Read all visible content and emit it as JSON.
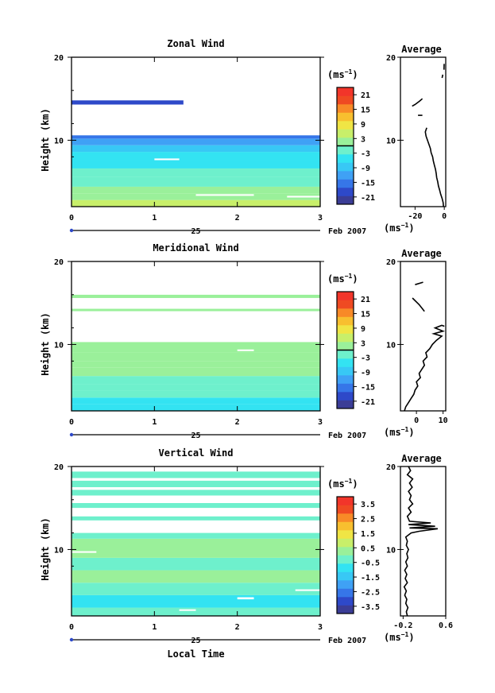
{
  "colors": {
    "scale": [
      "#3b3d96",
      "#2e49c9",
      "#3676e8",
      "#3fa1f5",
      "#38c8f5",
      "#33e3f2",
      "#6ef0cc",
      "#9af09a",
      "#c8ef6a",
      "#f0e545",
      "#f8bf2f",
      "#f88a27",
      "#ef4a22",
      "#f2352a"
    ],
    "line": "#000000",
    "blank": "#ffffff"
  },
  "chart_data": [
    {
      "type": "heatmap",
      "panel": "zonal",
      "title": "Zonal Wind",
      "ylabel": "Height (km)",
      "xlabel": "",
      "x_ticks": [
        "0",
        "1",
        "2",
        "3"
      ],
      "y_ticks": [
        "20",
        "10"
      ],
      "xlim": [
        0,
        3
      ],
      "ylim": [
        2,
        20
      ],
      "date_tick": "25",
      "date_label": "Feb 2007",
      "colorbar": {
        "unit": "(ms",
        "unit_exp": "−1",
        "unit_close": ")",
        "ticks": [
          "21",
          "15",
          "9",
          "3",
          "-3",
          "-9",
          "-15",
          "-21"
        ],
        "range": [
          -24,
          24
        ],
        "line_at": 0
      },
      "bands": [
        {
          "y0": 2.0,
          "y1": 2.8,
          "value": 4
        },
        {
          "y0": 2.8,
          "y1": 3.6,
          "value": 2
        },
        {
          "y0": 3.6,
          "y1": 4.4,
          "value": 0.5
        },
        {
          "y0": 4.4,
          "y1": 5.6,
          "value": -1
        },
        {
          "y0": 5.6,
          "y1": 6.6,
          "value": -3
        },
        {
          "y0": 6.6,
          "y1": 7.6,
          "value": -4
        },
        {
          "y0": 7.6,
          "y1": 8.6,
          "value": -6
        },
        {
          "y0": 8.6,
          "y1": 9.4,
          "value": -8
        },
        {
          "y0": 9.4,
          "y1": 10.2,
          "value": -13
        },
        {
          "y0": 10.2,
          "y1": 10.6,
          "value": -16
        },
        {
          "y0": 14.3,
          "y1": 14.8,
          "value": -19
        }
      ],
      "gaps": [
        {
          "x0": 0.0,
          "x1": 3.0,
          "y0": 10.6,
          "y1": 14.2
        },
        {
          "x0": 1.35,
          "x1": 3.0,
          "y0": 14.2,
          "y1": 15.0
        },
        {
          "x0": 1.0,
          "x1": 1.3,
          "y0": 7.6,
          "y1": 7.8
        },
        {
          "x0": 1.5,
          "x1": 2.2,
          "y0": 3.3,
          "y1": 3.5
        },
        {
          "x0": 2.6,
          "x1": 3.0,
          "y0": 3.1,
          "y1": 3.3
        }
      ],
      "profile": {
        "title": "Average",
        "xlabel": "(ms",
        "xlabel_exp": "−1",
        "xlabel_close": ")",
        "x_ticks": [
          -20,
          0
        ],
        "x_tick_labels": [
          "-20",
          "0"
        ],
        "xlim": [
          -30,
          1
        ],
        "y_ticks": [
          "20",
          "10"
        ],
        "ylim": [
          2,
          20
        ],
        "segments": [
          [
            [
              -0.5,
              2.0
            ],
            [
              -0.8,
              2.5
            ],
            [
              -1.5,
              3.0
            ],
            [
              -2.5,
              3.5
            ],
            [
              -3.2,
              4.0
            ],
            [
              -4.0,
              4.5
            ],
            [
              -4.5,
              5.0
            ],
            [
              -5.2,
              5.5
            ],
            [
              -5.5,
              6.0
            ],
            [
              -6.0,
              6.5
            ],
            [
              -6.8,
              7.0
            ],
            [
              -7.5,
              7.5
            ],
            [
              -8.0,
              8.0
            ],
            [
              -9.0,
              8.5
            ],
            [
              -9.5,
              9.0
            ],
            [
              -10.5,
              9.5
            ],
            [
              -11.5,
              10.0
            ],
            [
              -12.5,
              10.5
            ],
            [
              -13.0,
              11.0
            ],
            [
              -12.0,
              11.5
            ]
          ],
          [
            [
              -18.0,
              13.0
            ],
            [
              -15.0,
              13.0
            ]
          ],
          [
            [
              -22.0,
              14.1
            ],
            [
              -20.0,
              14.3
            ],
            [
              -17.0,
              14.7
            ],
            [
              -15.0,
              15.0
            ]
          ],
          [
            [
              -1.5,
              17.5
            ],
            [
              -1.0,
              17.9
            ]
          ],
          [
            [
              -0.2,
              18.5
            ],
            [
              -0.1,
              19.2
            ]
          ]
        ]
      }
    },
    {
      "type": "heatmap",
      "panel": "meridional",
      "title": "Meridional Wind",
      "ylabel": "Height (km)",
      "xlabel": "",
      "x_ticks": [
        "0",
        "1",
        "2",
        "3"
      ],
      "y_ticks": [
        "20",
        "10"
      ],
      "xlim": [
        0,
        3
      ],
      "ylim": [
        2,
        20
      ],
      "date_tick": "25",
      "date_label": "Feb 2007",
      "colorbar": {
        "unit": "(ms",
        "unit_exp": "−1",
        "unit_close": ")",
        "ticks": [
          "21",
          "15",
          "9",
          "3",
          "-3",
          "-9",
          "-15",
          "-21"
        ],
        "range": [
          -24,
          24
        ],
        "line_at": 0
      },
      "bands": [
        {
          "y0": 2.0,
          "y1": 2.8,
          "value": -4
        },
        {
          "y0": 2.8,
          "y1": 3.6,
          "value": -5
        },
        {
          "y0": 3.6,
          "y1": 4.4,
          "value": -3
        },
        {
          "y0": 4.4,
          "y1": 5.2,
          "value": -2
        },
        {
          "y0": 5.2,
          "y1": 6.2,
          "value": -0.5
        },
        {
          "y0": 6.2,
          "y1": 7.2,
          "value": 0.5
        },
        {
          "y0": 7.2,
          "y1": 8.0,
          "value": 1.5
        },
        {
          "y0": 8.0,
          "y1": 9.0,
          "value": 0.5
        },
        {
          "y0": 9.0,
          "y1": 10.3,
          "value": 2
        },
        {
          "y0": 14.0,
          "y1": 14.3,
          "value": 1
        },
        {
          "y0": 15.6,
          "y1": 16.0,
          "value": 1.5
        }
      ],
      "gaps": [
        {
          "x0": 0.0,
          "x1": 3.0,
          "y0": 10.3,
          "y1": 14.0
        },
        {
          "x0": 1.3,
          "x1": 3.0,
          "y0": 14.3,
          "y1": 15.6
        },
        {
          "x0": 0.0,
          "x1": 3.0,
          "y0": 16.0,
          "y1": 20.0
        },
        {
          "x0": 2.0,
          "x1": 2.2,
          "y0": 9.2,
          "y1": 9.4
        }
      ],
      "profile": {
        "title": "Average",
        "xlabel": "(ms",
        "xlabel_exp": "−1",
        "xlabel_close": ")",
        "x_ticks": [
          0,
          10
        ],
        "x_tick_labels": [
          "0",
          "10"
        ],
        "xlim": [
          -6,
          11
        ],
        "y_ticks": [
          "20",
          "10"
        ],
        "ylim": [
          2,
          20
        ],
        "segments": [
          [
            [
              -4.5,
              2.0
            ],
            [
              -4.0,
              2.5
            ],
            [
              -3.0,
              3.0
            ],
            [
              -2.0,
              3.5
            ],
            [
              -1.0,
              4.0
            ],
            [
              -0.5,
              4.5
            ],
            [
              0.5,
              5.0
            ],
            [
              0.0,
              5.5
            ],
            [
              1.5,
              6.0
            ],
            [
              1.0,
              6.5
            ],
            [
              2.0,
              7.0
            ],
            [
              3.0,
              7.5
            ],
            [
              2.5,
              8.0
            ],
            [
              4.0,
              8.5
            ],
            [
              3.5,
              9.0
            ],
            [
              5.0,
              9.5
            ],
            [
              6.0,
              10.0
            ],
            [
              7.5,
              10.5
            ],
            [
              9.5,
              11.0
            ],
            [
              6.5,
              11.3
            ],
            [
              10.0,
              11.6
            ],
            [
              7.0,
              12.0
            ],
            [
              9.5,
              12.3
            ],
            [
              10.5,
              12.2
            ]
          ],
          [
            [
              -1.5,
              15.6
            ],
            [
              1.0,
              14.8
            ],
            [
              3.0,
              14.0
            ]
          ],
          [
            [
              -0.5,
              17.2
            ],
            [
              2.5,
              17.5
            ]
          ]
        ]
      }
    },
    {
      "type": "heatmap",
      "panel": "vertical",
      "title": "Vertical Wind",
      "ylabel": "Height (km)",
      "xlabel": "Local Time",
      "x_ticks": [
        "0",
        "1",
        "2",
        "3"
      ],
      "y_ticks": [
        "20",
        "10"
      ],
      "xlim": [
        0,
        3
      ],
      "ylim": [
        2,
        20
      ],
      "date_tick": "25",
      "date_label": "Feb 2007",
      "colorbar": {
        "unit": "(ms",
        "unit_exp": "−1",
        "unit_close": ")",
        "ticks": [
          "3.5",
          "2.5",
          "1.5",
          "0.5",
          "-0.5",
          "-1.5",
          "-2.5",
          "-3.5"
        ],
        "range": [
          -4,
          4
        ],
        "line_at": null
      },
      "bands": [
        {
          "y0": 2.0,
          "y1": 3.0,
          "value": -0.2
        },
        {
          "y0": 3.0,
          "y1": 4.5,
          "value": -0.7
        },
        {
          "y0": 4.5,
          "y1": 6.0,
          "value": -0.3
        },
        {
          "y0": 6.0,
          "y1": 7.5,
          "value": 0.3
        },
        {
          "y0": 7.5,
          "y1": 9.0,
          "value": -0.2
        },
        {
          "y0": 9.0,
          "y1": 11.3,
          "value": 0.2
        },
        {
          "y0": 11.3,
          "y1": 12.0,
          "value": -0.2
        },
        {
          "y0": 13.5,
          "y1": 14.0,
          "value": -0.3
        },
        {
          "y0": 15.0,
          "y1": 15.6,
          "value": -0.2
        },
        {
          "y0": 16.5,
          "y1": 17.2,
          "value": -0.2
        },
        {
          "y0": 17.5,
          "y1": 18.3,
          "value": -0.3
        },
        {
          "y0": 18.6,
          "y1": 19.4,
          "value": -0.2
        }
      ],
      "gaps": [
        {
          "x0": 0.0,
          "x1": 3.0,
          "y0": 12.0,
          "y1": 13.5
        },
        {
          "x0": 0.0,
          "x1": 3.0,
          "y0": 14.0,
          "y1": 15.0
        },
        {
          "x0": 0.0,
          "x1": 3.0,
          "y0": 15.6,
          "y1": 16.5
        },
        {
          "x0": 0.0,
          "x1": 3.0,
          "y0": 17.2,
          "y1": 17.5
        },
        {
          "x0": 0.0,
          "x1": 3.0,
          "y0": 18.3,
          "y1": 18.6
        },
        {
          "x0": 0.0,
          "x1": 3.0,
          "y0": 19.4,
          "y1": 20.0
        },
        {
          "x0": 2.0,
          "x1": 2.2,
          "y0": 4.0,
          "y1": 4.25
        },
        {
          "x0": 1.3,
          "x1": 1.5,
          "y0": 2.6,
          "y1": 2.8
        },
        {
          "x0": 0.0,
          "x1": 0.3,
          "y0": 9.6,
          "y1": 9.8
        },
        {
          "x0": 2.7,
          "x1": 3.0,
          "y0": 5.0,
          "y1": 5.2
        }
      ],
      "profile": {
        "title": "Average",
        "xlabel": "(ms",
        "xlabel_exp": "−1",
        "xlabel_close": ")",
        "x_ticks": [
          -0.2,
          0.6
        ],
        "x_tick_labels": [
          "-0.2",
          "0.6"
        ],
        "xlim": [
          -0.25,
          0.6
        ],
        "y_ticks": [
          "20",
          "10"
        ],
        "ylim": [
          2,
          20
        ],
        "segments": [
          [
            [
              -0.12,
              2.0
            ],
            [
              -0.14,
              2.5
            ],
            [
              -0.11,
              3.0
            ],
            [
              -0.15,
              3.5
            ],
            [
              -0.13,
              4.0
            ],
            [
              -0.17,
              4.5
            ],
            [
              -0.14,
              5.0
            ],
            [
              -0.18,
              5.5
            ],
            [
              -0.12,
              6.0
            ],
            [
              -0.16,
              6.5
            ],
            [
              -0.13,
              7.0
            ],
            [
              -0.17,
              7.5
            ],
            [
              -0.12,
              8.0
            ],
            [
              -0.15,
              8.5
            ],
            [
              -0.11,
              9.0
            ],
            [
              -0.13,
              9.5
            ],
            [
              -0.1,
              10.0
            ],
            [
              -0.14,
              10.5
            ],
            [
              -0.12,
              11.0
            ],
            [
              -0.15,
              11.5
            ],
            [
              -0.05,
              12.0
            ],
            [
              0.1,
              12.2
            ],
            [
              0.45,
              12.5
            ],
            [
              -0.08,
              12.6
            ],
            [
              0.4,
              12.8
            ],
            [
              -0.1,
              13.0
            ],
            [
              0.32,
              13.2
            ],
            [
              -0.08,
              13.4
            ],
            [
              -0.12,
              14.0
            ],
            [
              -0.05,
              14.5
            ],
            [
              -0.1,
              15.0
            ],
            [
              -0.02,
              15.5
            ],
            [
              -0.08,
              16.0
            ],
            [
              -0.05,
              16.5
            ],
            [
              -0.1,
              17.0
            ],
            [
              -0.03,
              17.5
            ],
            [
              -0.08,
              18.0
            ],
            [
              -0.02,
              18.5
            ],
            [
              -0.12,
              19.0
            ],
            [
              -0.06,
              19.5
            ],
            [
              -0.1,
              20.0
            ]
          ]
        ]
      }
    }
  ]
}
